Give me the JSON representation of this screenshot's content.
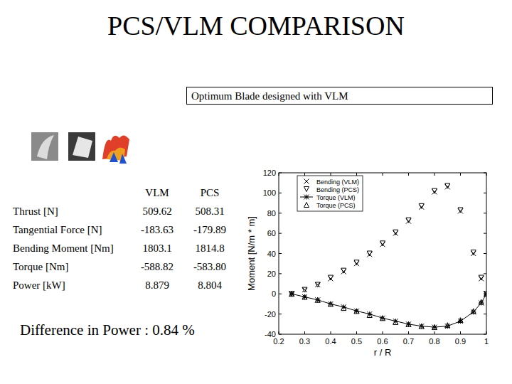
{
  "slide": {
    "title": "PCS/VLM COMPARISON",
    "subtitle": "Optimum Blade designed with VLM"
  },
  "table": {
    "columns": [
      "VLM",
      "PCS"
    ],
    "rows": [
      [
        "Thrust [N]",
        "509.62",
        "508.31"
      ],
      [
        "Tangential Force [N]",
        "-183.63",
        "-179.89"
      ],
      [
        "Bending Moment [Nm]",
        "1803.1",
        "1814.8"
      ],
      [
        "Torque [Nm]",
        "-588.82",
        "-583.80"
      ],
      [
        "Power [kW]",
        "8.879",
        "8.804"
      ]
    ]
  },
  "note": "Difference in Power  :  0.84 %",
  "chart_data": {
    "type": "line",
    "x_label": "r / R",
    "y_label": "Moment [N/m * m]",
    "x": [
      0.25,
      0.3,
      0.35,
      0.4,
      0.45,
      0.5,
      0.55,
      0.6,
      0.65,
      0.7,
      0.75,
      0.8,
      0.85,
      0.9,
      0.95,
      0.98,
      1.0
    ],
    "series": [
      {
        "name": "Bending (VLM)",
        "color": "#000000",
        "marker": "x",
        "line_style": "none",
        "values": [
          0,
          4,
          9,
          15,
          22,
          30,
          39,
          49,
          60,
          72,
          86,
          101,
          106,
          82,
          40,
          15,
          0
        ]
      },
      {
        "name": "Bending (PCS)",
        "color": "#000000",
        "marker": "triangle-down",
        "line_style": "none",
        "values": [
          0,
          4,
          9,
          16,
          23,
          31,
          40,
          50,
          61,
          73,
          87,
          102,
          107,
          83,
          41,
          16,
          0
        ]
      },
      {
        "name": "Torque (VLM)",
        "color": "#000000",
        "marker": "star",
        "line_style": "solid",
        "values": [
          0,
          -3,
          -6,
          -10,
          -13,
          -17,
          -20,
          -24,
          -27,
          -30,
          -32,
          -33,
          -32,
          -27,
          -18,
          -9,
          0
        ]
      },
      {
        "name": "Torque (PCS)",
        "color": "#000000",
        "marker": "triangle-up",
        "line_style": "none",
        "values": [
          0,
          -3,
          -6,
          -10,
          -14,
          -17,
          -21,
          -24,
          -28,
          -30,
          -32,
          -33,
          -31,
          -26,
          -17,
          -8,
          0
        ]
      }
    ],
    "xlim": [
      0.2,
      1
    ],
    "xticks": [
      0.2,
      0.3,
      0.4,
      0.5,
      0.6,
      0.7,
      0.8,
      0.9,
      1
    ],
    "ylim": [
      -40,
      120
    ],
    "yticks": [
      -40,
      -20,
      0,
      20,
      40,
      60,
      80,
      100,
      120
    ],
    "grid": false,
    "legend": "upper-left"
  }
}
